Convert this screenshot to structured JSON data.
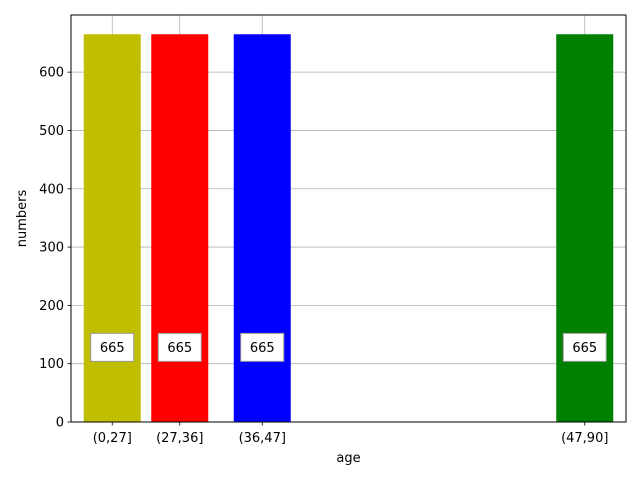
{
  "chart_data": {
    "type": "bar",
    "categories": [
      "(0,27]",
      "(27,36]",
      "(36,47]",
      "(47,90]"
    ],
    "x_positions": [
      27,
      36,
      47,
      90
    ],
    "values": [
      665,
      665,
      665,
      665
    ],
    "data_labels": [
      "665",
      "665",
      "665",
      "665"
    ],
    "label_y_value": 128,
    "colors": [
      "#bfbf00",
      "#ff0000",
      "#0000ff",
      "#008000"
    ],
    "xlabel": "age",
    "ylabel": "numbers",
    "ylim": [
      0,
      698
    ],
    "xlim": [
      21.5,
      95.5
    ],
    "yticks": [
      0,
      100,
      200,
      300,
      400,
      500,
      600
    ],
    "grid": true
  }
}
